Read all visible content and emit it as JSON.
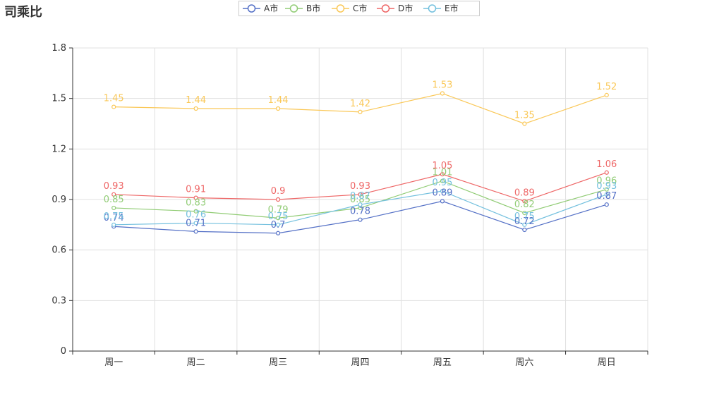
{
  "chart_data": {
    "type": "line",
    "title": "司乘比",
    "categories": [
      "周一",
      "周二",
      "周三",
      "周四",
      "周五",
      "周六",
      "周日"
    ],
    "ylim": [
      0,
      1.8
    ],
    "yticks": [
      "0",
      "0.3",
      "0.6",
      "0.9",
      "1.2",
      "1.5",
      "1.8"
    ],
    "grid": true,
    "legend_position": "top-center",
    "series": [
      {
        "name": "A市",
        "color": "#5470c6",
        "values": [
          0.74,
          0.71,
          0.7,
          0.78,
          0.89,
          0.72,
          0.87
        ]
      },
      {
        "name": "B市",
        "color": "#91cc75",
        "values": [
          0.85,
          0.83,
          0.79,
          0.85,
          1.01,
          0.82,
          0.96
        ]
      },
      {
        "name": "C市",
        "color": "#fac858",
        "values": [
          1.45,
          1.44,
          1.44,
          1.42,
          1.53,
          1.35,
          1.52
        ]
      },
      {
        "name": "D市",
        "color": "#ee6666",
        "values": [
          0.93,
          0.91,
          0.9,
          0.93,
          1.05,
          0.89,
          1.06
        ]
      },
      {
        "name": "E市",
        "color": "#73c0de",
        "values": [
          0.75,
          0.76,
          0.75,
          0.87,
          0.95,
          0.75,
          0.93
        ]
      }
    ]
  }
}
